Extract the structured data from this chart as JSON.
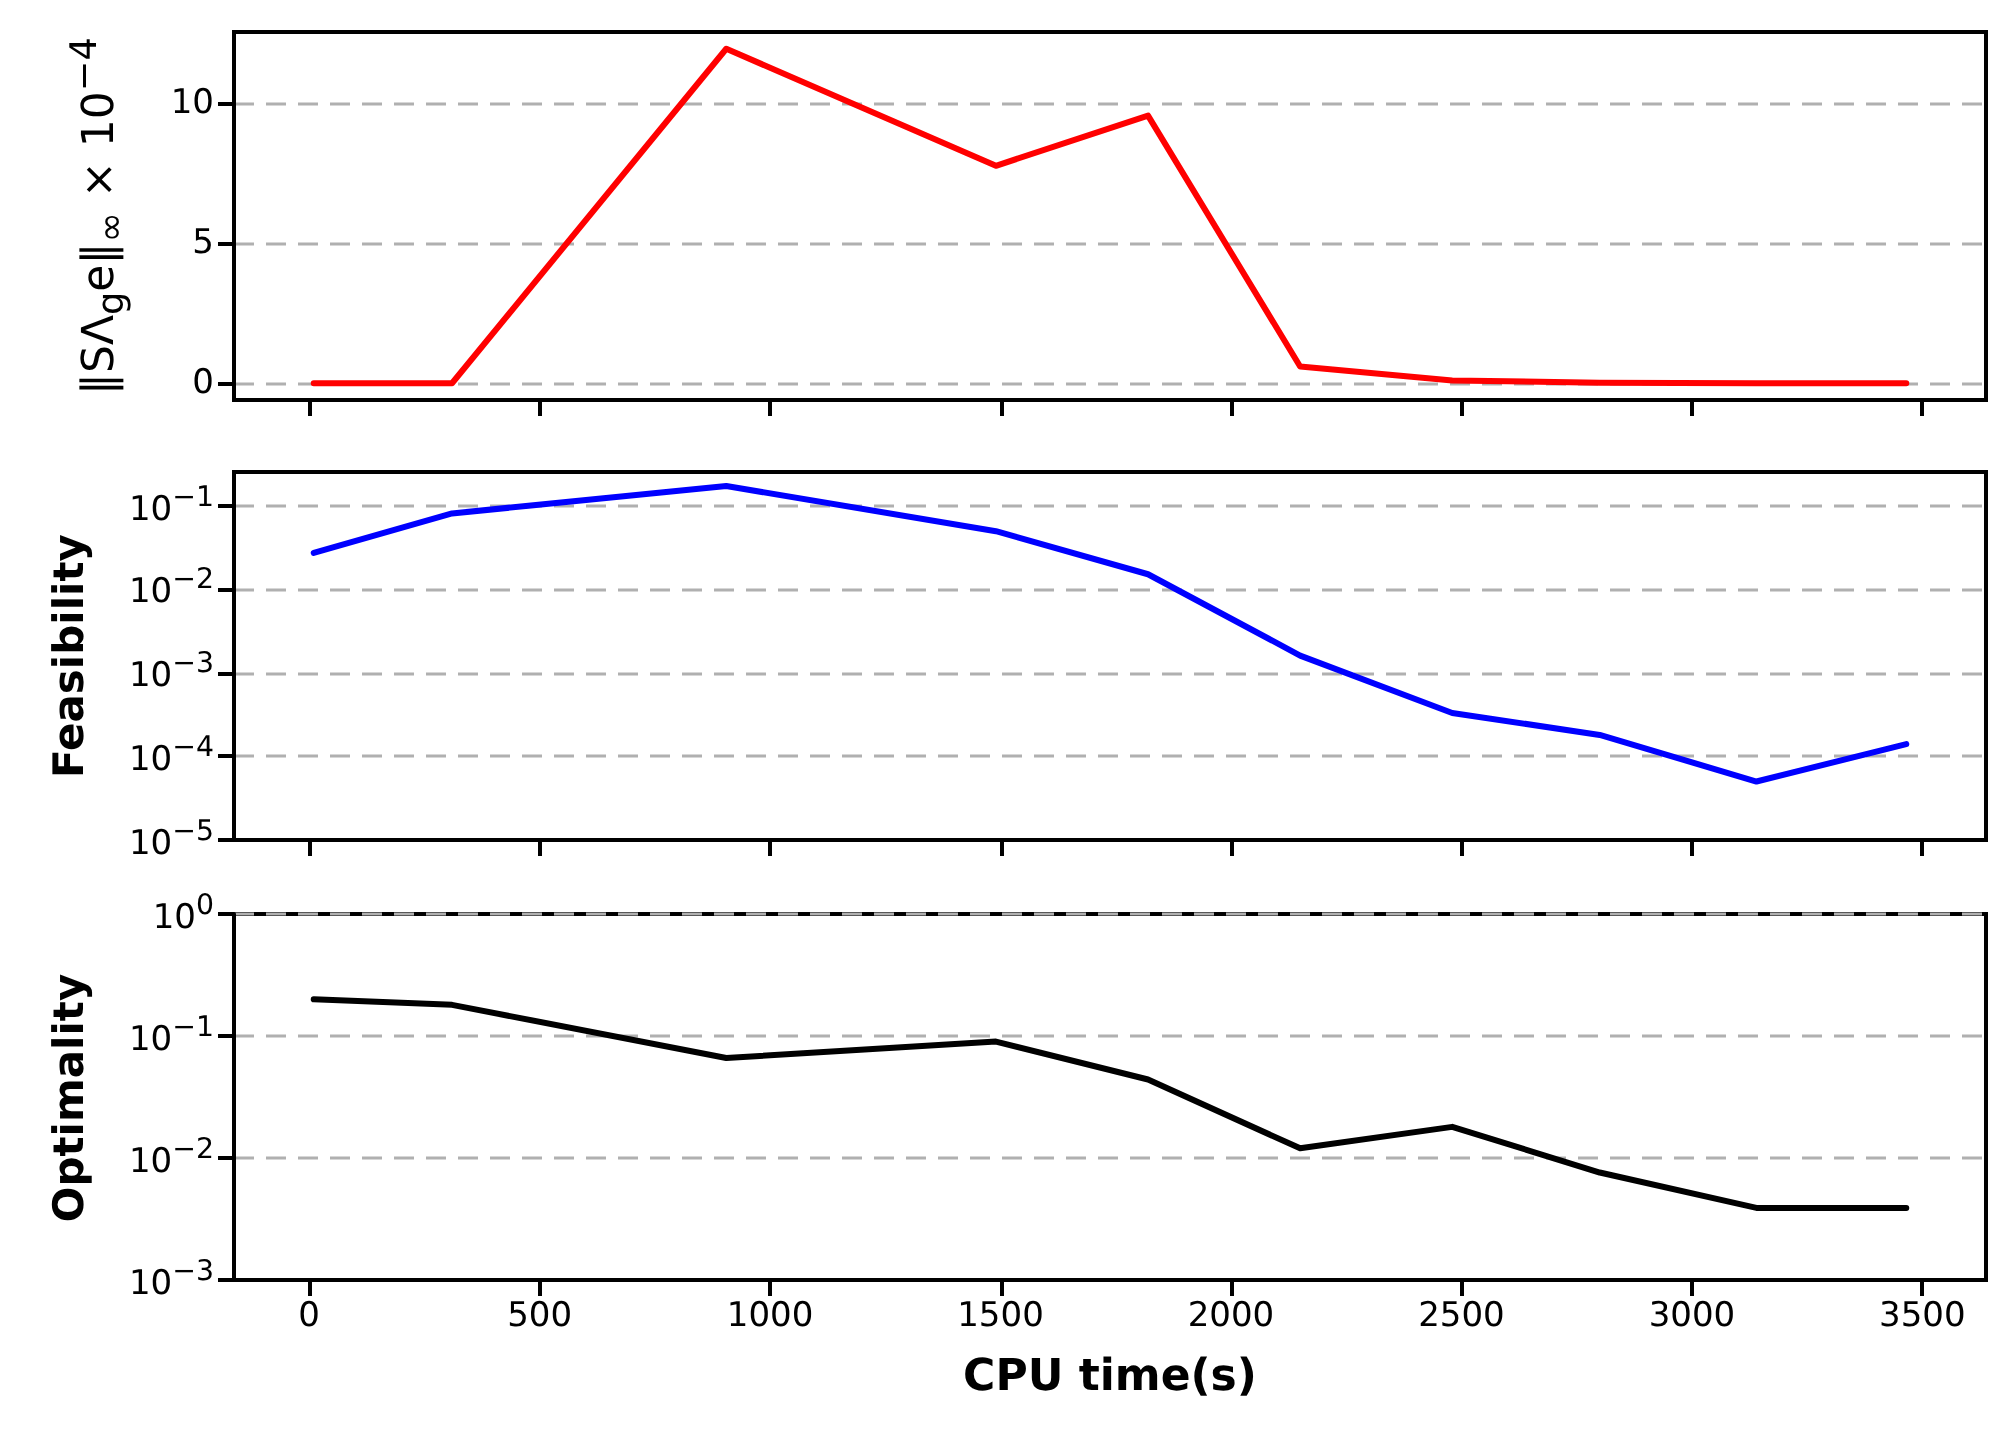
{
  "chart_data": [
    {
      "type": "line",
      "ylabel": "‖SΛ$_{g}$e‖$_{∞}$ × 10$^{−4}$",
      "x": [
        10,
        310,
        905,
        1490,
        1820,
        2150,
        2480,
        2800,
        3140,
        3465
      ],
      "series": [
        {
          "color": "#ff0000",
          "values": [
            0,
            0,
            12.0,
            7.8,
            9.6,
            0.6,
            0.1,
            0.02,
            0,
            0
          ]
        }
      ],
      "xlim": [
        -163,
        3638
      ],
      "xticks": [
        0,
        500,
        1000,
        1500,
        2000,
        2500,
        3000,
        3500
      ],
      "ylim": [
        -0.6,
        12.6
      ],
      "yticks": [
        0,
        5,
        10
      ],
      "grid": "y",
      "marker": "none",
      "tick_labels": "y"
    },
    {
      "type": "line",
      "ylabel": "Feasibility",
      "x": [
        10,
        310,
        905,
        1490,
        1820,
        2150,
        2480,
        2800,
        3140,
        3465
      ],
      "series": [
        {
          "color": "#0000ff",
          "values": [
            0.027,
            0.08,
            0.17,
            0.049,
            0.015,
            0.0016,
            0.00033,
            0.00018,
            5e-05,
            0.00014
          ]
        }
      ],
      "xlim": [
        -163,
        3638
      ],
      "xticks": [
        0,
        500,
        1000,
        1500,
        2000,
        2500,
        3000,
        3500
      ],
      "ylim": [
        1e-05,
        0.25
      ],
      "yticks": [
        {
          "value": 1e-05,
          "label": "10$^{−5}$"
        },
        {
          "value": 0.0001,
          "label": "10$^{−4}$"
        },
        {
          "value": 0.001,
          "label": "10$^{−3}$"
        },
        {
          "value": 0.01,
          "label": "10$^{−2}$"
        },
        {
          "value": 0.1,
          "label": "10$^{−1}$"
        }
      ],
      "log": true,
      "grid": "y",
      "marker": "none",
      "tick_labels": "y"
    },
    {
      "type": "line",
      "xlabel": "CPU time(s)",
      "ylabel": "Optimality",
      "x": [
        10,
        310,
        905,
        1490,
        1820,
        2150,
        2480,
        2800,
        3140,
        3465
      ],
      "series": [
        {
          "color": "#000000",
          "values": [
            0.2,
            0.18,
            0.066,
            0.09,
            0.044,
            0.012,
            0.018,
            0.0076,
            0.0039,
            0.0039
          ]
        }
      ],
      "xlim": [
        -163,
        3638
      ],
      "xticks": [
        0,
        500,
        1000,
        1500,
        2000,
        2500,
        3000,
        3500
      ],
      "ylim": [
        0.001,
        1
      ],
      "yticks": [
        {
          "value": 0.001,
          "label": "10$^{−3}$"
        },
        {
          "value": 0.01,
          "label": "10$^{−2}$"
        },
        {
          "value": 0.1,
          "label": "10$^{−1}$"
        },
        {
          "value": 1,
          "label": "10$^{0}$"
        }
      ],
      "log": true,
      "grid": "y",
      "marker": "none"
    }
  ]
}
